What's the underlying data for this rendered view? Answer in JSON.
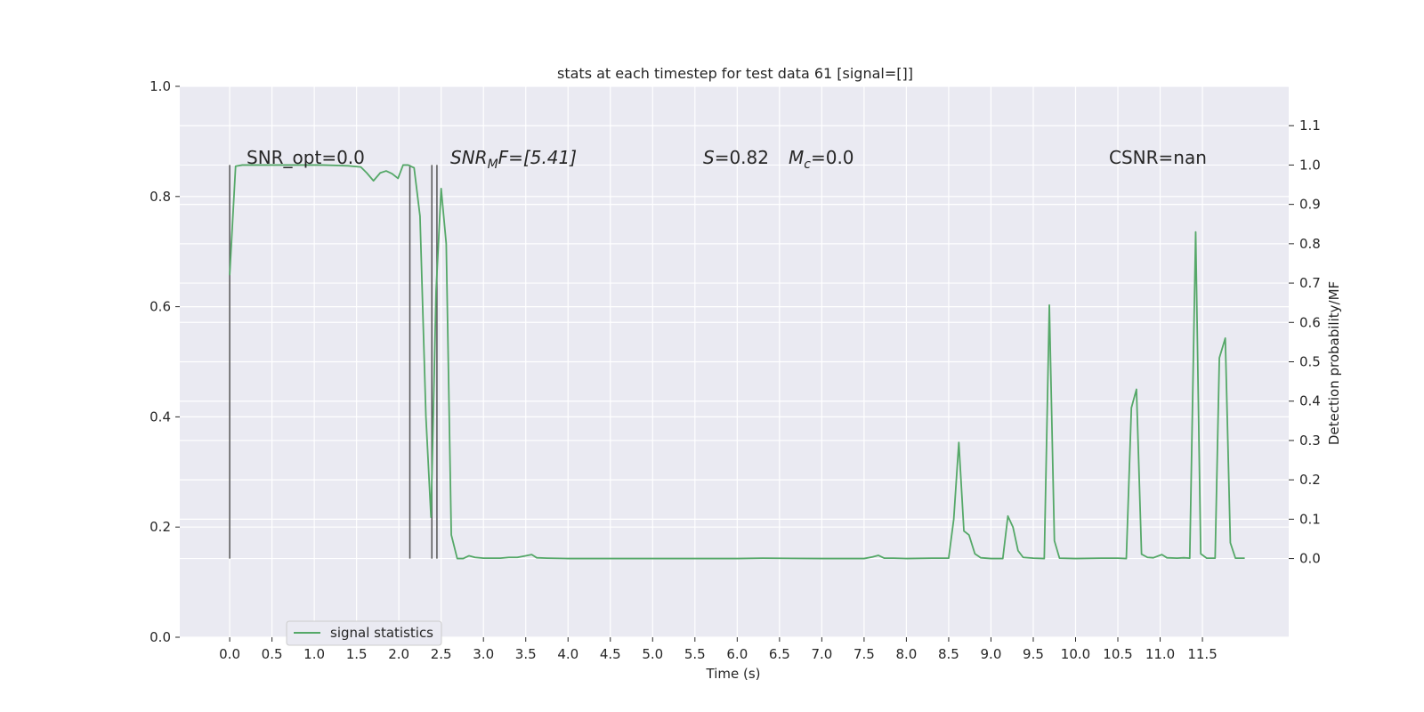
{
  "colors": {
    "plot_background": "#eaeaf2",
    "grid": "#ffffff",
    "series_line": "#55a868",
    "marker_lines": "#555555",
    "text": "#262626"
  },
  "chart_data": {
    "type": "line",
    "title": "stats at each timestep for test data 61 [signal=[]]",
    "xlabel": "Time (s)",
    "ylabel_left": "",
    "ylabel_right": "Detection probability/MF",
    "xlim": [
      -0.59,
      12.52
    ],
    "ylim_left": [
      0.0,
      1.0
    ],
    "ylim_right": [
      -0.2,
      1.2
    ],
    "x_ticks": [
      "0.0",
      "0.5",
      "1.0",
      "1.5",
      "2.0",
      "2.5",
      "3.0",
      "3.5",
      "4.0",
      "4.5",
      "5.0",
      "5.5",
      "6.0",
      "6.5",
      "7.0",
      "7.5",
      "8.0",
      "8.5",
      "9.0",
      "9.5",
      "10.0",
      "10.5",
      "11.0",
      "11.5"
    ],
    "y_ticks_left": [
      "0.0",
      "0.2",
      "0.4",
      "0.6",
      "0.8",
      "1.0"
    ],
    "y_ticks_right": [
      "0.0",
      "0.1",
      "0.2",
      "0.3",
      "0.4",
      "0.5",
      "0.6",
      "0.7",
      "0.8",
      "0.9",
      "1.0",
      "1.1"
    ],
    "grid": true,
    "legend": {
      "position": "lower-left",
      "entries": [
        "signal statistics"
      ]
    },
    "annotations": {
      "snr_opt": "SNR_opt=0.0",
      "snr_mf_main": "SNR",
      "snr_mf_sub": "M",
      "snr_mf_rest": "F=[5.41]",
      "s_var": "S",
      "s_val": "=0.82",
      "mc_var": "M",
      "mc_sub": "c",
      "mc_val": "=0.0",
      "csnr": "CSNR=nan"
    },
    "vertical_markers_x": [
      0.0,
      2.13,
      2.39,
      2.45
    ],
    "vertical_markers_top": 1.0,
    "series": [
      {
        "name": "signal statistics",
        "axis": "right",
        "points": [
          [
            0.0,
            0.72
          ],
          [
            0.07,
            0.997
          ],
          [
            0.15,
            1.0
          ],
          [
            0.3,
            1.0
          ],
          [
            0.5,
            1.0
          ],
          [
            0.8,
            1.0
          ],
          [
            1.1,
            1.0
          ],
          [
            1.4,
            0.998
          ],
          [
            1.55,
            0.995
          ],
          [
            1.62,
            0.98
          ],
          [
            1.7,
            0.96
          ],
          [
            1.78,
            0.98
          ],
          [
            1.85,
            0.985
          ],
          [
            1.92,
            0.978
          ],
          [
            1.99,
            0.966
          ],
          [
            2.05,
            1.0
          ],
          [
            2.11,
            1.0
          ],
          [
            2.18,
            0.993
          ],
          [
            2.25,
            0.87
          ],
          [
            2.32,
            0.36
          ],
          [
            2.38,
            0.105
          ],
          [
            2.44,
            0.68
          ],
          [
            2.5,
            0.94
          ],
          [
            2.56,
            0.8
          ],
          [
            2.62,
            0.06
          ],
          [
            2.69,
            0.0
          ],
          [
            2.76,
            0.0
          ],
          [
            2.83,
            0.007
          ],
          [
            2.9,
            0.003
          ],
          [
            3.0,
            0.001
          ],
          [
            3.1,
            0.001
          ],
          [
            3.2,
            0.001
          ],
          [
            3.3,
            0.003
          ],
          [
            3.4,
            0.003
          ],
          [
            3.5,
            0.007
          ],
          [
            3.57,
            0.01
          ],
          [
            3.63,
            0.002
          ],
          [
            3.75,
            0.001
          ],
          [
            4.0,
            0.0
          ],
          [
            5.0,
            0.0
          ],
          [
            6.0,
            0.0
          ],
          [
            6.3,
            0.001
          ],
          [
            7.0,
            0.0
          ],
          [
            7.5,
            0.0
          ],
          [
            7.6,
            0.004
          ],
          [
            7.67,
            0.008
          ],
          [
            7.74,
            0.001
          ],
          [
            7.85,
            0.001
          ],
          [
            8.0,
            0.0
          ],
          [
            8.3,
            0.001
          ],
          [
            8.5,
            0.001
          ],
          [
            8.56,
            0.1
          ],
          [
            8.62,
            0.295
          ],
          [
            8.68,
            0.07
          ],
          [
            8.74,
            0.06
          ],
          [
            8.81,
            0.012
          ],
          [
            8.88,
            0.002
          ],
          [
            9.0,
            0.0
          ],
          [
            9.14,
            0.0
          ],
          [
            9.2,
            0.108
          ],
          [
            9.26,
            0.08
          ],
          [
            9.32,
            0.02
          ],
          [
            9.38,
            0.003
          ],
          [
            9.5,
            0.001
          ],
          [
            9.63,
            0.0
          ],
          [
            9.69,
            0.644
          ],
          [
            9.75,
            0.045
          ],
          [
            9.81,
            0.001
          ],
          [
            10.0,
            0.0
          ],
          [
            10.3,
            0.001
          ],
          [
            10.5,
            0.001
          ],
          [
            10.6,
            0.0
          ],
          [
            10.66,
            0.383
          ],
          [
            10.72,
            0.43
          ],
          [
            10.78,
            0.011
          ],
          [
            10.85,
            0.003
          ],
          [
            10.92,
            0.002
          ],
          [
            11.02,
            0.01
          ],
          [
            11.08,
            0.002
          ],
          [
            11.2,
            0.001
          ],
          [
            11.28,
            0.002
          ],
          [
            11.35,
            0.001
          ],
          [
            11.42,
            0.83
          ],
          [
            11.48,
            0.012
          ],
          [
            11.55,
            0.001
          ],
          [
            11.65,
            0.001
          ],
          [
            11.7,
            0.51
          ],
          [
            11.77,
            0.56
          ],
          [
            11.83,
            0.04
          ],
          [
            11.89,
            0.001
          ],
          [
            12.0,
            0.001
          ]
        ]
      }
    ]
  }
}
